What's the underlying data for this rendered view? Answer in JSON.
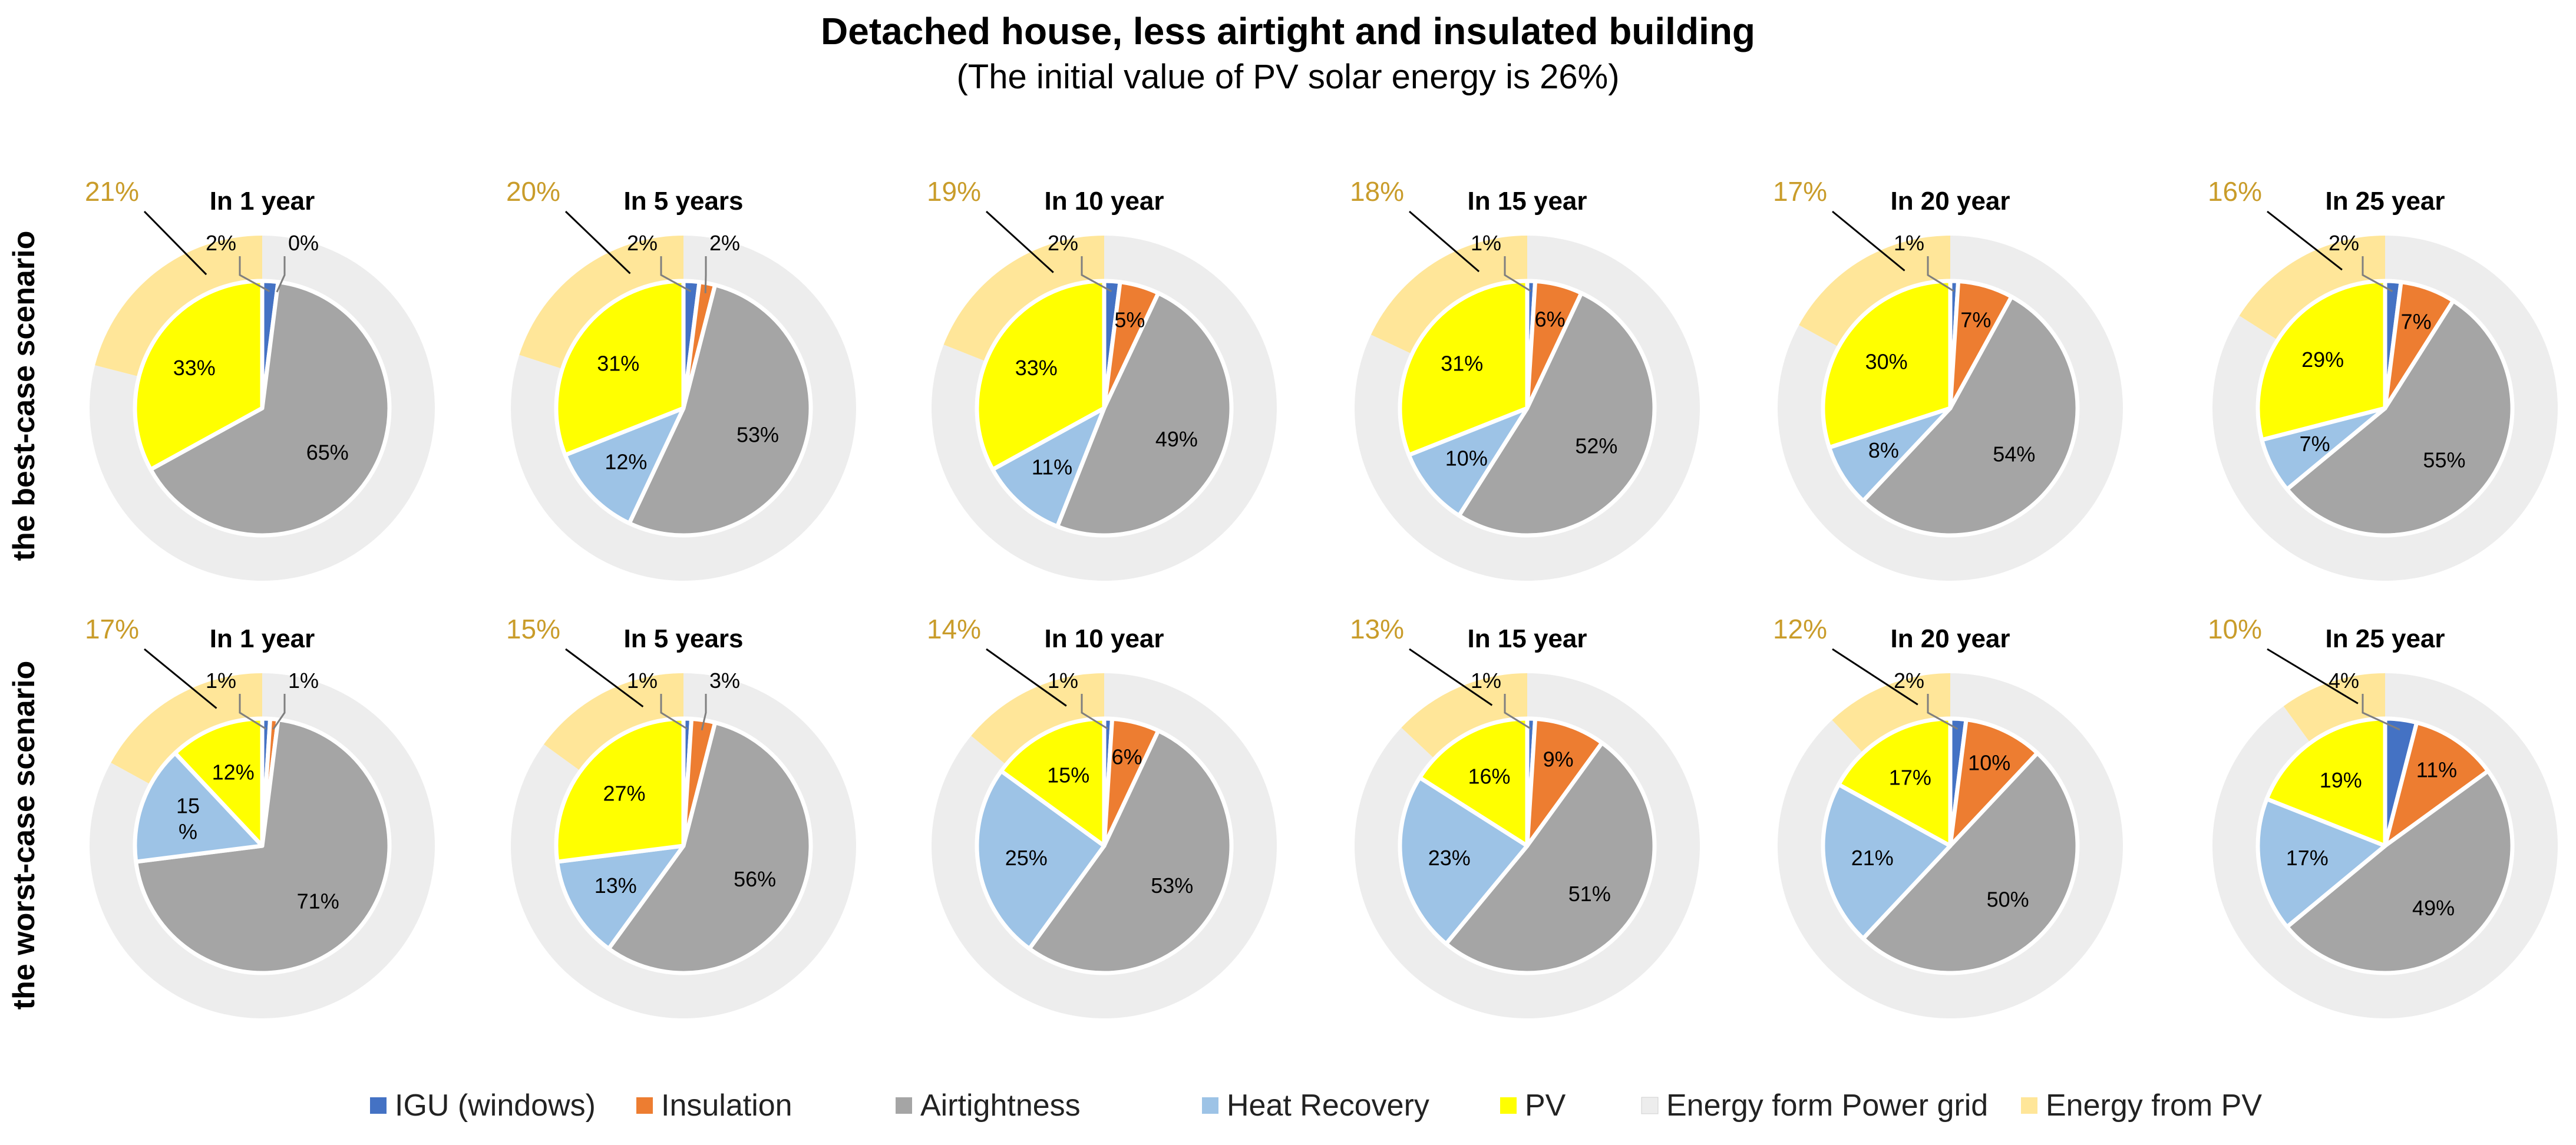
{
  "chart_data": {
    "type": "pie",
    "title": "Detached house, less airtight and insulated building",
    "subtitle": "(The initial value of PV solar energy is 26%)",
    "legend": [
      {
        "name": "IGU (windows)",
        "color": "#4472C4"
      },
      {
        "name": "Insulation",
        "color": "#ED7D31"
      },
      {
        "name": "Airtightness",
        "color": "#A5A5A5"
      },
      {
        "name": "Heat Recovery",
        "color": "#9DC3E6"
      },
      {
        "name": "PV",
        "color": "#FFFF00"
      },
      {
        "name": "Energy form Power grid",
        "color": "#EDEDED"
      },
      {
        "name": "Energy from PV",
        "color": "#FFE699"
      }
    ],
    "outer_ring_series": [
      "Energy form Power grid",
      "Energy from PV"
    ],
    "inner_pie_series": [
      "IGU (windows)",
      "Insulation",
      "Airtightness",
      "Heat Recovery",
      "PV"
    ],
    "rows": [
      {
        "label": "the best-case scenario",
        "charts": [
          {
            "title": "In 1 year",
            "energy_from_pv": 21,
            "energy_from_pv_label": "21%",
            "values": [
              2,
              0,
              65,
              0,
              33
            ],
            "labels": [
              "2%",
              "0%",
              "65%",
              "",
              "33%"
            ]
          },
          {
            "title": "In 5 years",
            "energy_from_pv": 20,
            "energy_from_pv_label": "20%",
            "values": [
              2,
              2,
              53,
              12,
              31
            ],
            "labels": [
              "2%",
              "2%",
              "53%",
              "12%",
              "31%"
            ]
          },
          {
            "title": "In 10 year",
            "energy_from_pv": 19,
            "energy_from_pv_label": "19%",
            "values": [
              2,
              5,
              49,
              11,
              33
            ],
            "labels": [
              "2%",
              "5%",
              "49%",
              "11%",
              "33%"
            ]
          },
          {
            "title": "In 15 year",
            "energy_from_pv": 18,
            "energy_from_pv_label": "18%",
            "values": [
              1,
              6,
              52,
              10,
              31
            ],
            "labels": [
              "1%",
              "6%",
              "52%",
              "10%",
              "31%"
            ]
          },
          {
            "title": "In 20 year",
            "energy_from_pv": 17,
            "energy_from_pv_label": "17%",
            "values": [
              1,
              7,
              54,
              8,
              30
            ],
            "labels": [
              "1%",
              "7%",
              "54%",
              "8%",
              "30%"
            ]
          },
          {
            "title": "In 25 year",
            "energy_from_pv": 16,
            "energy_from_pv_label": "16%",
            "values": [
              2,
              7,
              55,
              7,
              29
            ],
            "labels": [
              "2%",
              "7%",
              "55%",
              "7%",
              "29%"
            ]
          }
        ]
      },
      {
        "label": "the worst-case scenario",
        "charts": [
          {
            "title": "In 1 year",
            "energy_from_pv": 17,
            "energy_from_pv_label": "17%",
            "values": [
              1,
              1,
              71,
              15,
              12
            ],
            "labels": [
              "1%",
              "1%",
              "71%",
              "15\n%",
              "12%"
            ]
          },
          {
            "title": "In 5 years",
            "energy_from_pv": 15,
            "energy_from_pv_label": "15%",
            "values": [
              1,
              3,
              56,
              13,
              27
            ],
            "labels": [
              "1%",
              "3%",
              "56%",
              "13%",
              "27%"
            ]
          },
          {
            "title": "In 10 year",
            "energy_from_pv": 14,
            "energy_from_pv_label": "14%",
            "values": [
              1,
              6,
              53,
              25,
              15
            ],
            "labels": [
              "1%",
              "6%",
              "53%",
              "25%",
              "15%"
            ]
          },
          {
            "title": "In 15 year",
            "energy_from_pv": 13,
            "energy_from_pv_label": "13%",
            "values": [
              1,
              9,
              51,
              23,
              16
            ],
            "labels": [
              "1%",
              "9%",
              "51%",
              "23%",
              "16%"
            ]
          },
          {
            "title": "In 20 year",
            "energy_from_pv": 12,
            "energy_from_pv_label": "12%",
            "values": [
              2,
              10,
              50,
              21,
              17
            ],
            "labels": [
              "2%",
              "10%",
              "50%",
              "21%",
              "17%"
            ]
          },
          {
            "title": "In 25 year",
            "energy_from_pv": 10,
            "energy_from_pv_label": "10%",
            "values": [
              4,
              11,
              49,
              17,
              19
            ],
            "labels": [
              "4%",
              "11%",
              "49%",
              "17%",
              "19%"
            ]
          }
        ]
      }
    ]
  }
}
